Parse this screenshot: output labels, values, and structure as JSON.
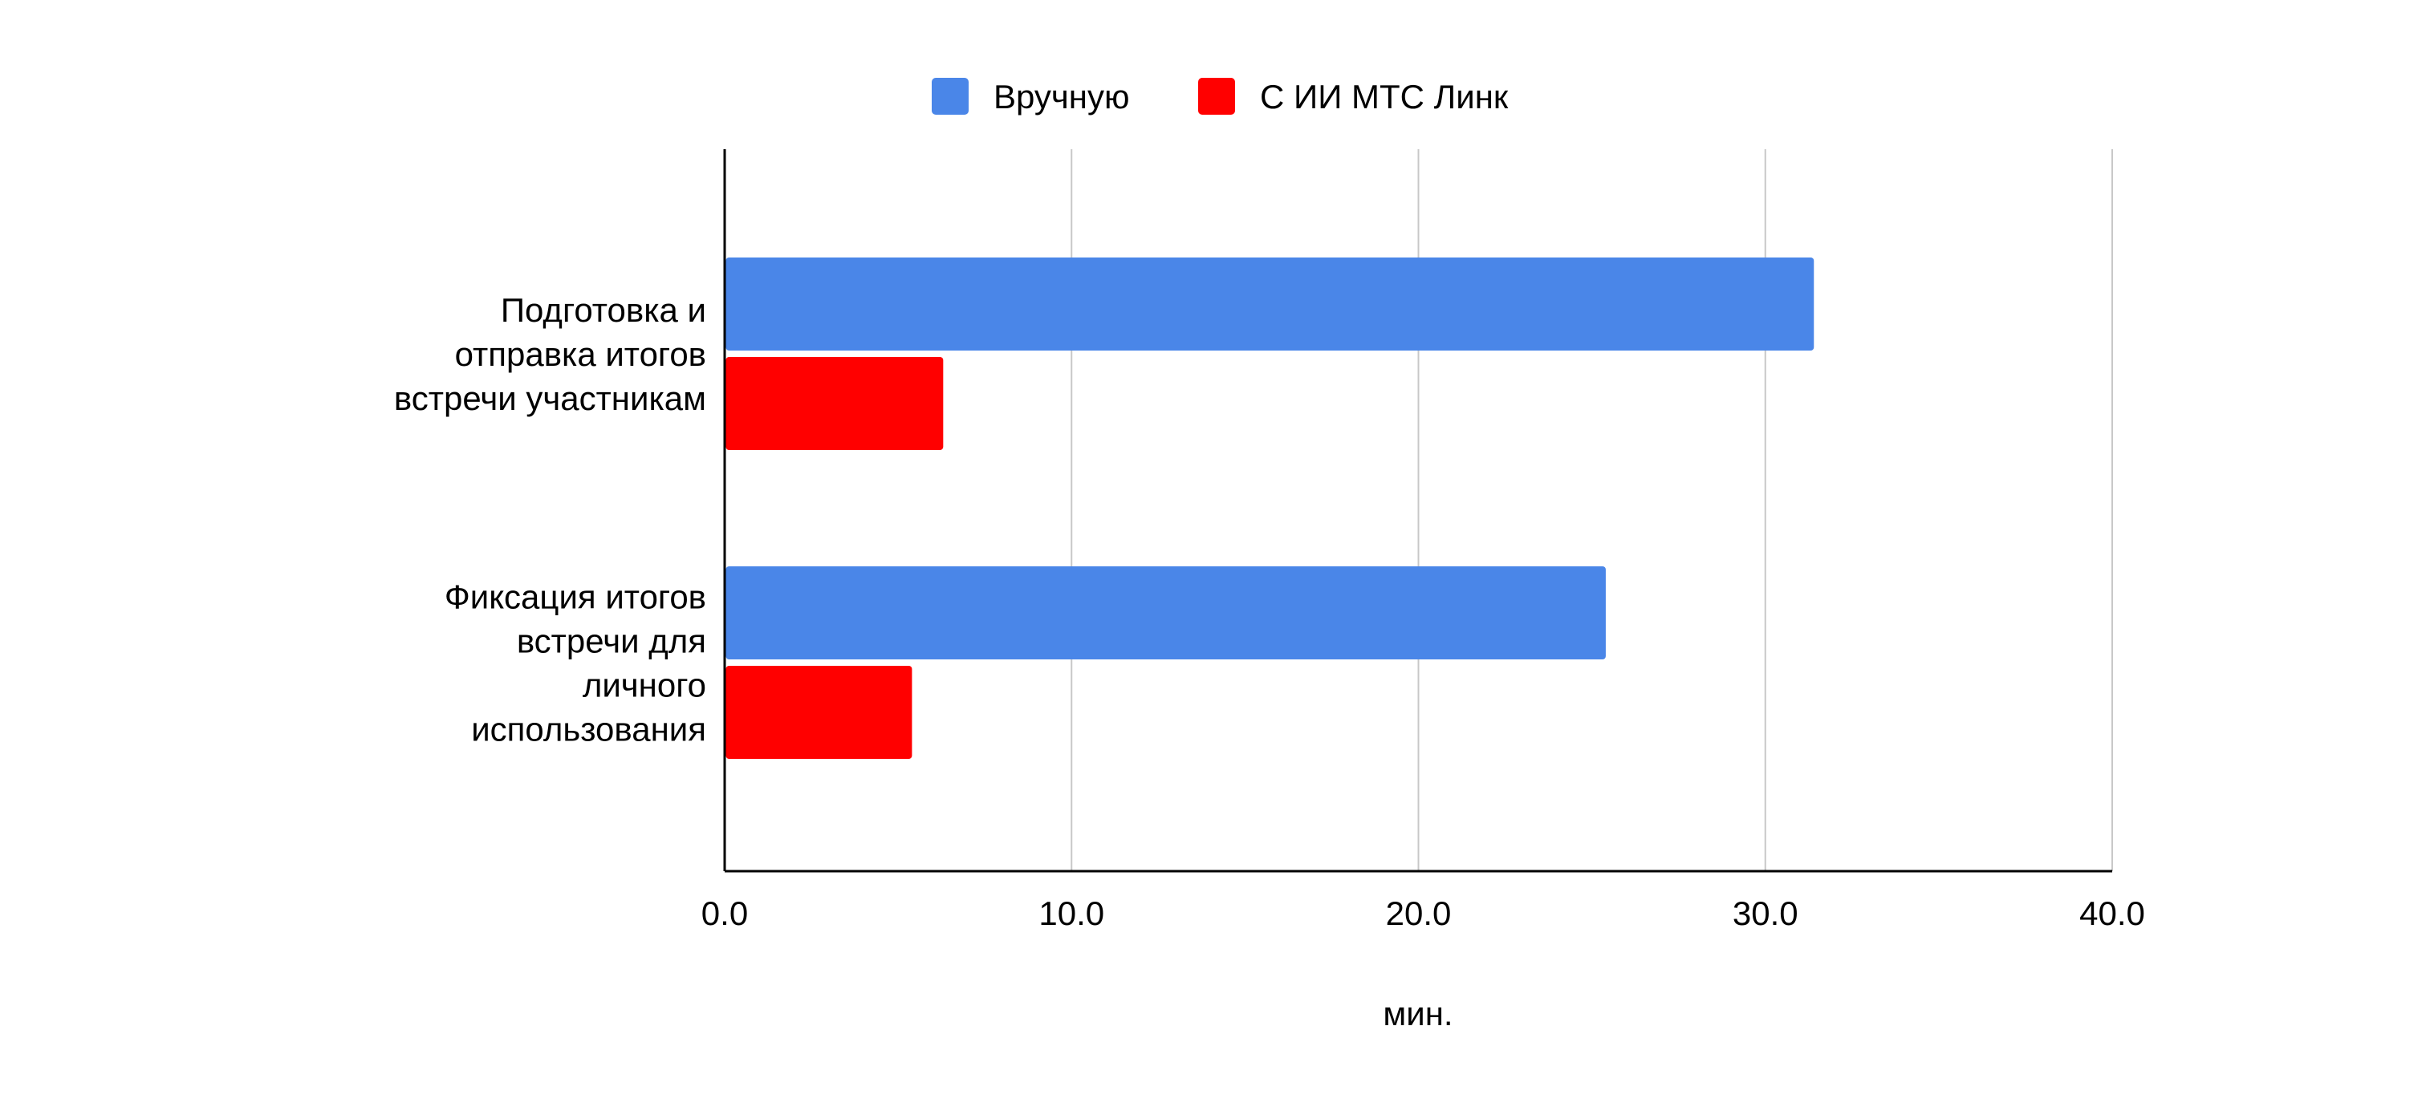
{
  "chart_data": {
    "type": "bar",
    "orientation": "horizontal",
    "categories": [
      [
        "Подготовка и",
        "отправка итогов",
        "встречи участникам"
      ],
      [
        "Фиксация итогов",
        "встречи для",
        "личного",
        "использования"
      ]
    ],
    "series": [
      {
        "name": "Вручную",
        "color": "#4A86E8",
        "values": [
          31.4,
          25.4
        ]
      },
      {
        "name": "С ИИ МТС Линк",
        "color": "#FF0000",
        "values": [
          6.3,
          5.4
        ]
      }
    ],
    "xlabel": "мин.",
    "ylabel": "",
    "xlim": [
      0,
      40
    ],
    "xticks": [
      0,
      10,
      20,
      30,
      40
    ],
    "xtick_labels": [
      "0.0",
      "10.0",
      "20.0",
      "30.0",
      "40.0"
    ],
    "grid": "vertical",
    "legend_position": "top-center"
  }
}
